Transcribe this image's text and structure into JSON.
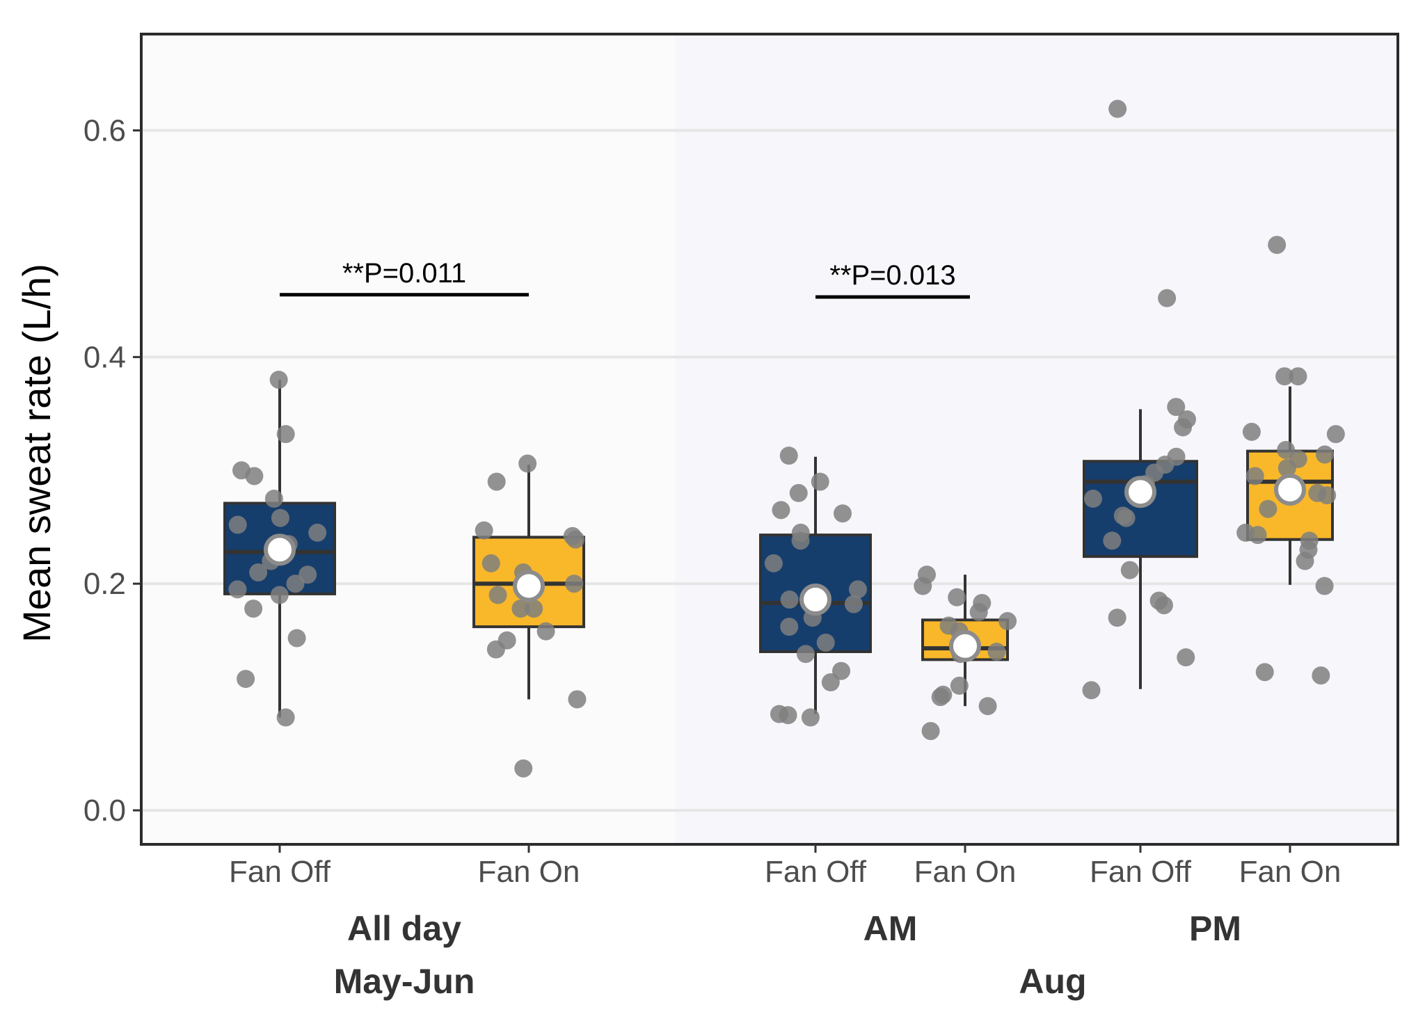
{
  "chart_data": {
    "type": "box",
    "ylabel": "Mean sweat rate (L/h)",
    "ylim": [
      -0.03,
      0.685
    ],
    "yticks": [
      "0.0",
      "0.2",
      "0.4",
      "0.6"
    ],
    "grid": "horizontal",
    "colors": {
      "Fan Off": "#163e6c",
      "Fan On": "#f9b82a",
      "points": "#7f7f7f",
      "mean_marker": "#ffffff",
      "panel_may_jun": "#fcfbfc",
      "panel_aug": "#f7f7fb"
    },
    "periods": [
      {
        "label": "May-Jun",
        "sublabels": [
          "All day"
        ]
      },
      {
        "label": "Aug",
        "sublabels": [
          "AM",
          "PM"
        ]
      }
    ],
    "boxes": [
      {
        "group": "All day",
        "period": "May-Jun",
        "condition": "Fan Off",
        "q1": 0.191,
        "median": 0.228,
        "q3": 0.271,
        "whisker_low": 0.082,
        "whisker_high": 0.38,
        "mean": 0.23,
        "points": [
          0.38,
          0.332,
          0.3,
          0.295,
          0.275,
          0.258,
          0.252,
          0.245,
          0.235,
          0.22,
          0.21,
          0.208,
          0.2,
          0.195,
          0.19,
          0.178,
          0.152,
          0.116,
          0.082
        ]
      },
      {
        "group": "All day",
        "period": "May-Jun",
        "condition": "Fan On",
        "q1": 0.162,
        "median": 0.2,
        "q3": 0.241,
        "whisker_low": 0.098,
        "whisker_high": 0.305,
        "mean": 0.198,
        "points": [
          0.306,
          0.29,
          0.247,
          0.242,
          0.239,
          0.218,
          0.21,
          0.2,
          0.19,
          0.178,
          0.178,
          0.158,
          0.15,
          0.142,
          0.098,
          0.037
        ]
      },
      {
        "group": "AM",
        "period": "Aug",
        "condition": "Fan Off",
        "q1": 0.14,
        "median": 0.183,
        "q3": 0.243,
        "whisker_low": 0.085,
        "whisker_high": 0.312,
        "mean": 0.186,
        "points": [
          0.313,
          0.29,
          0.28,
          0.265,
          0.262,
          0.245,
          0.238,
          0.218,
          0.195,
          0.186,
          0.182,
          0.17,
          0.162,
          0.148,
          0.138,
          0.123,
          0.113,
          0.085,
          0.084,
          0.082
        ]
      },
      {
        "group": "AM",
        "period": "Aug",
        "condition": "Fan On",
        "q1": 0.133,
        "median": 0.143,
        "q3": 0.168,
        "whisker_low": 0.092,
        "whisker_high": 0.208,
        "mean": 0.145,
        "points": [
          0.208,
          0.198,
          0.188,
          0.183,
          0.175,
          0.167,
          0.163,
          0.158,
          0.15,
          0.145,
          0.14,
          0.138,
          0.11,
          0.102,
          0.1,
          0.092,
          0.07
        ]
      },
      {
        "group": "PM",
        "period": "Aug",
        "condition": "Fan Off",
        "q1": 0.224,
        "median": 0.29,
        "q3": 0.308,
        "whisker_low": 0.107,
        "whisker_high": 0.354,
        "mean": 0.281,
        "points": [
          0.619,
          0.452,
          0.356,
          0.345,
          0.338,
          0.312,
          0.305,
          0.298,
          0.288,
          0.275,
          0.26,
          0.258,
          0.238,
          0.212,
          0.185,
          0.181,
          0.17,
          0.135,
          0.106
        ]
      },
      {
        "group": "PM",
        "period": "Aug",
        "condition": "Fan On",
        "q1": 0.239,
        "median": 0.29,
        "q3": 0.317,
        "whisker_low": 0.199,
        "whisker_high": 0.374,
        "mean": 0.283,
        "points": [
          0.499,
          0.383,
          0.383,
          0.334,
          0.332,
          0.318,
          0.314,
          0.31,
          0.302,
          0.295,
          0.28,
          0.278,
          0.266,
          0.245,
          0.243,
          0.238,
          0.23,
          0.22,
          0.198,
          0.122,
          0.119
        ]
      }
    ],
    "annotations": [
      {
        "text": "**P=0.011",
        "y": 0.455,
        "from": 0,
        "to": 1
      },
      {
        "text": "**P=0.013",
        "y": 0.453,
        "from": 2,
        "to": 3
      }
    ]
  }
}
